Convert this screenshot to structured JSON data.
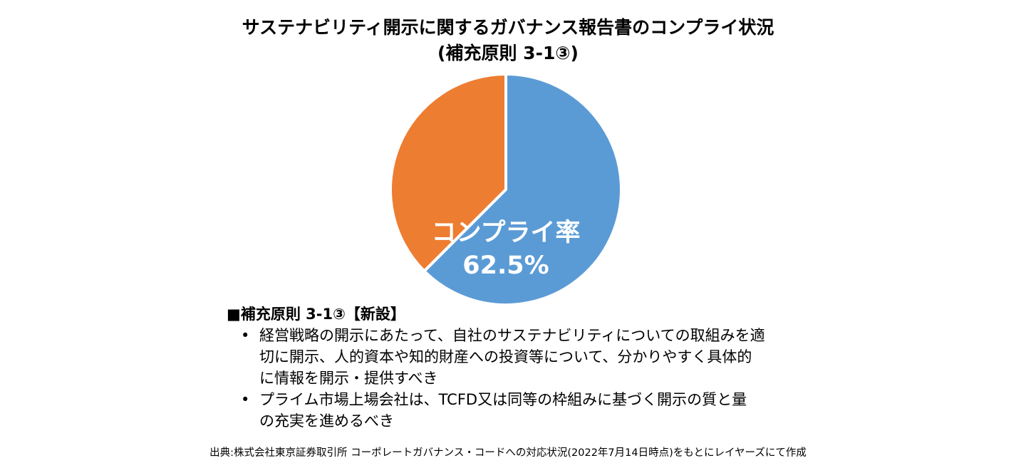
{
  "chart_data": {
    "type": "pie",
    "title_line1": "サステナビリティ開示に関するガバナンス報告書のコンプライ状況",
    "title_line2": "(補充原則 3-1③)",
    "slices": [
      {
        "label": "コンプライ率",
        "value": 62.5,
        "value_label": "62.5%",
        "color": "#5B9BD5"
      },
      {
        "label": "",
        "value": 37.5,
        "color": "#ED7D31"
      }
    ],
    "start": "12 o'clock",
    "direction": "clockwise"
  },
  "notes": {
    "heading": "■補充原則 3-1③【新設】",
    "bullet_symbol": "•",
    "bullets": [
      {
        "lines": [
          "経営戦略の開示にあたって、自社のサステナビリティについての取組みを適",
          "切に開示、人的資本や知的財産への投資等について、分かりやすく具体的",
          "に情報を開示・提供すべき"
        ]
      },
      {
        "lines": [
          "プライム市場上場会社は、TCFD又は同等の枠組みに基づく開示の質と量",
          "の充実を進めるべき"
        ]
      }
    ]
  },
  "source": "出典:株式会社東京証券取引所 コーポレートガバナンス・コードへの対応状況(2022年7月14日時点)をもとにレイヤーズにて作成"
}
